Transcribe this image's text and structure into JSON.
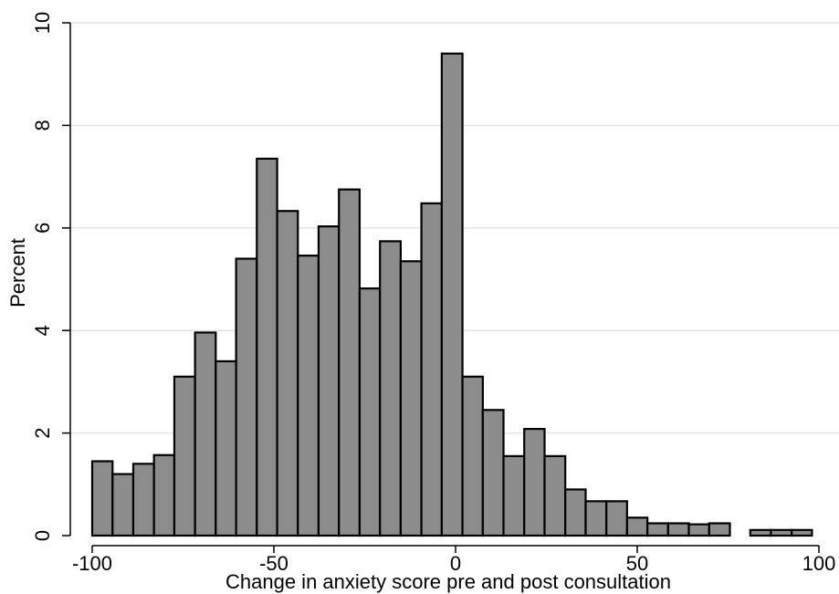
{
  "chart_data": {
    "type": "bar",
    "title": "",
    "xlabel": "Change in anxiety score pre and post consultation",
    "ylabel": "Percent",
    "xlim": [
      -100,
      100
    ],
    "ylim": [
      0,
      10
    ],
    "x_ticks": [
      -100,
      -50,
      0,
      50,
      100
    ],
    "y_ticks": [
      0,
      2,
      4,
      6,
      8,
      10
    ],
    "grid": "horizontal",
    "colors": {
      "bar_fill": "#8c8c8c",
      "bar_edge": "#000000",
      "grid": "#e1e6ea"
    },
    "bins": [
      {
        "start": -100.0,
        "end": -94.4,
        "value": 1.45
      },
      {
        "start": -94.4,
        "end": -88.7,
        "value": 1.2
      },
      {
        "start": -88.7,
        "end": -83.0,
        "value": 1.4
      },
      {
        "start": -83.0,
        "end": -77.4,
        "value": 1.57
      },
      {
        "start": -77.4,
        "end": -71.7,
        "value": 3.1
      },
      {
        "start": -71.7,
        "end": -66.0,
        "value": 3.96
      },
      {
        "start": -66.0,
        "end": -60.4,
        "value": 3.4
      },
      {
        "start": -60.4,
        "end": -54.7,
        "value": 5.4
      },
      {
        "start": -54.7,
        "end": -49.1,
        "value": 7.35
      },
      {
        "start": -49.1,
        "end": -43.4,
        "value": 6.33
      },
      {
        "start": -43.4,
        "end": -37.7,
        "value": 5.46
      },
      {
        "start": -37.7,
        "end": -32.1,
        "value": 6.03
      },
      {
        "start": -32.1,
        "end": -26.4,
        "value": 6.75
      },
      {
        "start": -26.4,
        "end": -20.8,
        "value": 4.82
      },
      {
        "start": -20.8,
        "end": -15.1,
        "value": 5.74
      },
      {
        "start": -15.1,
        "end": -9.4,
        "value": 5.35
      },
      {
        "start": -9.4,
        "end": -3.8,
        "value": 6.48
      },
      {
        "start": -3.8,
        "end": 1.9,
        "value": 9.4
      },
      {
        "start": 1.9,
        "end": 7.5,
        "value": 3.1
      },
      {
        "start": 7.5,
        "end": 13.2,
        "value": 2.45
      },
      {
        "start": 13.2,
        "end": 18.9,
        "value": 1.55
      },
      {
        "start": 18.9,
        "end": 24.5,
        "value": 2.08
      },
      {
        "start": 24.5,
        "end": 30.2,
        "value": 1.55
      },
      {
        "start": 30.2,
        "end": 35.8,
        "value": 0.9
      },
      {
        "start": 35.8,
        "end": 41.5,
        "value": 0.67
      },
      {
        "start": 41.5,
        "end": 47.2,
        "value": 0.67
      },
      {
        "start": 47.2,
        "end": 52.8,
        "value": 0.35
      },
      {
        "start": 52.8,
        "end": 58.5,
        "value": 0.24
      },
      {
        "start": 58.5,
        "end": 64.2,
        "value": 0.24
      },
      {
        "start": 64.2,
        "end": 69.8,
        "value": 0.22
      },
      {
        "start": 69.8,
        "end": 75.5,
        "value": 0.24
      },
      {
        "start": 81.1,
        "end": 86.8,
        "value": 0.11
      },
      {
        "start": 86.8,
        "end": 92.5,
        "value": 0.11
      },
      {
        "start": 92.5,
        "end": 98.1,
        "value": 0.11
      }
    ]
  }
}
